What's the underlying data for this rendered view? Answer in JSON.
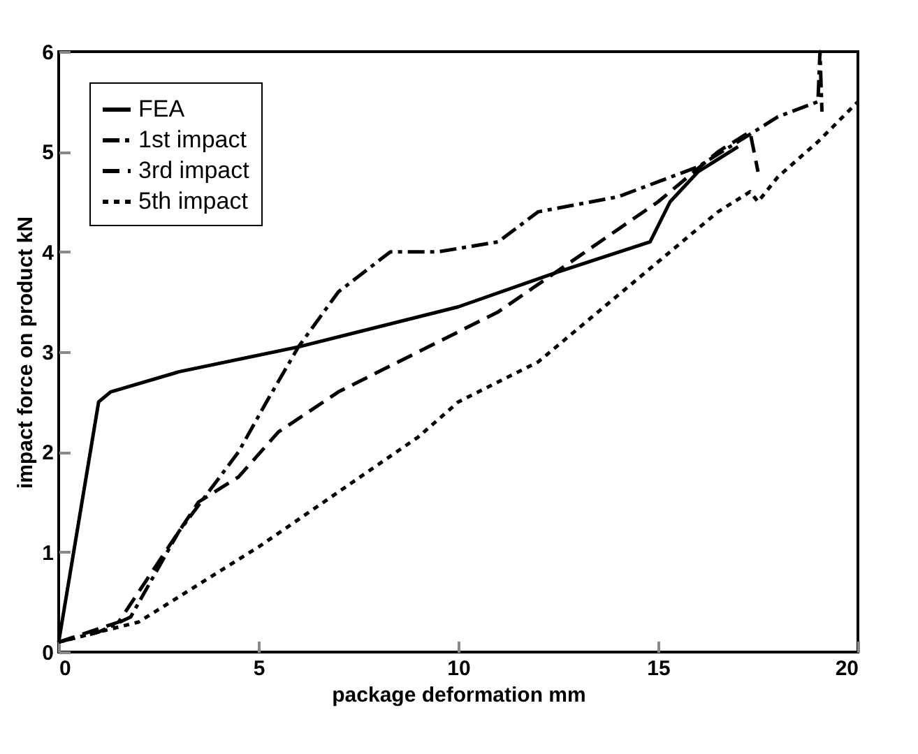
{
  "chart_data": {
    "type": "line",
    "xlabel": "package deformation   mm",
    "ylabel": "impact force on product   kN",
    "xlim": [
      0,
      20
    ],
    "ylim": [
      0,
      6
    ],
    "xticks": [
      0,
      5,
      10,
      15,
      20
    ],
    "yticks": [
      0,
      1,
      2,
      3,
      4,
      5,
      6
    ],
    "grid": false,
    "legend": "top left",
    "marker": "none",
    "series": [
      {
        "name": "FEA",
        "color": "#000000",
        "line_style": "solid",
        "x": [
          0,
          1,
          1.3,
          3,
          6,
          10,
          12.5,
          14.8,
          15.3,
          16,
          17
        ],
        "values": [
          0.1,
          2.5,
          2.6,
          2.8,
          3.05,
          3.45,
          3.8,
          4.1,
          4.5,
          4.8,
          5.05
        ]
      },
      {
        "name": "1st impact",
        "color": "#000000",
        "line_style": "dashdot",
        "x": [
          0,
          1,
          1.8,
          3,
          4.5,
          5.2,
          6,
          7,
          8.3,
          9.5,
          11,
          12,
          14,
          15,
          16,
          17,
          18,
          19,
          19.05,
          19.1
        ],
        "values": [
          0.1,
          0.2,
          0.35,
          1.2,
          2.0,
          2.5,
          3.05,
          3.6,
          4.0,
          4.0,
          4.1,
          4.4,
          4.55,
          4.7,
          4.85,
          5.1,
          5.35,
          5.5,
          6.0,
          5.4
        ]
      },
      {
        "name": "3rd impact",
        "color": "#000000",
        "line_style": "dashed",
        "x": [
          0,
          1.5,
          2.5,
          3.5,
          4.5,
          5.5,
          7,
          9,
          11,
          13,
          15,
          16.5,
          17.3,
          17.5
        ],
        "values": [
          0.1,
          0.3,
          0.9,
          1.5,
          1.75,
          2.2,
          2.6,
          3.0,
          3.4,
          3.95,
          4.5,
          5.0,
          5.2,
          4.8
        ]
      },
      {
        "name": "5th impact",
        "color": "#000000",
        "line_style": "dotted",
        "x": [
          0,
          2,
          3,
          5,
          7,
          9,
          10,
          12,
          13.5,
          15,
          16.5,
          17.3,
          17.5,
          18,
          19,
          20
        ],
        "values": [
          0.1,
          0.3,
          0.55,
          1.05,
          1.6,
          2.15,
          2.5,
          2.9,
          3.4,
          3.9,
          4.4,
          4.6,
          4.5,
          4.75,
          5.1,
          5.5
        ]
      }
    ]
  }
}
